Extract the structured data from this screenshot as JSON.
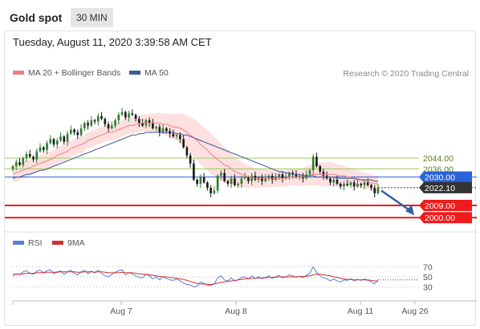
{
  "header": {
    "title": "Gold spot",
    "timeframe": "30 MIN"
  },
  "timestamp": "Tuesday, August 11, 2020 3:39:58 AM CET",
  "credit": "Research © 2020 Trading Central",
  "colors": {
    "ma20": "#f08080",
    "ma50": "#3d5a99",
    "bollinger": "#fcd6d4",
    "candle_up": "#2f7d32",
    "candle_down": "#1a1a1a",
    "resistance": "#9ccc65",
    "pivot": "#2962d6",
    "support": "#ee1c1c",
    "last_price": "#333333",
    "rsi": "#5b7fd8",
    "rsi_ma": "#d32f2f",
    "arrow": "#2f5fa8"
  },
  "chart_data": [
    {
      "type": "candlestick",
      "title": "Gold spot",
      "timeframe": "30 MIN",
      "legend": [
        "MA 20 + Bollinger Bands",
        "MA 50"
      ],
      "legend_position": "top-left",
      "ylim": [
        1993,
        2095
      ],
      "x_ticks": [
        "Aug 7",
        "Aug 8",
        "Aug 11",
        "Aug 26"
      ],
      "levels": [
        {
          "value": 2044.0,
          "label": "2044.00",
          "kind": "resistance"
        },
        {
          "value": 2036.0,
          "label": "2036.00",
          "kind": "resistance"
        },
        {
          "value": 2030.0,
          "label": "2030.00",
          "kind": "pivot"
        },
        {
          "value": 2022.1,
          "label": "2022.10",
          "kind": "last"
        },
        {
          "value": 2009.0,
          "label": "2009.00",
          "kind": "support"
        },
        {
          "value": 2000.0,
          "label": "2000.00",
          "kind": "support"
        }
      ],
      "projection": {
        "from": 2020,
        "to": 2000,
        "direction": "down"
      },
      "series": [
        {
          "name": "Price",
          "close": [
            2038,
            2041,
            2039,
            2044,
            2047,
            2045,
            2043,
            2049,
            2052,
            2050,
            2055,
            2058,
            2054,
            2057,
            2060,
            2056,
            2062,
            2065,
            2063,
            2061,
            2066,
            2070,
            2068,
            2072,
            2071,
            2075,
            2073,
            2069,
            2066,
            2068,
            2072,
            2076,
            2078,
            2074,
            2077,
            2076,
            2073,
            2070,
            2068,
            2072,
            2070,
            2066,
            2067,
            2063,
            2066,
            2064,
            2062,
            2060,
            2061,
            2058,
            2052,
            2046,
            2040,
            2028,
            2025,
            2030,
            2026,
            2022,
            2018,
            2020,
            2031,
            2033,
            2027,
            2025,
            2029,
            2024,
            2025,
            2029,
            2030,
            2027,
            2031,
            2028,
            2030,
            2027,
            2029,
            2031,
            2028,
            2030,
            2032,
            2029,
            2030,
            2033,
            2032,
            2030,
            2031,
            2029,
            2032,
            2035,
            2045,
            2038,
            2034,
            2031,
            2029,
            2026,
            2028,
            2025,
            2023,
            2025,
            2024,
            2026,
            2023,
            2025,
            2024,
            2026,
            2024,
            2022,
            2018,
            2022
          ]
        },
        {
          "name": "MA 20",
          "values": [
            2032,
            2033,
            2034,
            2035,
            2036,
            2037,
            2038,
            2039,
            2040,
            2041,
            2042,
            2043,
            2044,
            2046,
            2047,
            2048,
            2049,
            2051,
            2052,
            2053,
            2054,
            2055,
            2057,
            2058,
            2059,
            2060,
            2061,
            2062,
            2063,
            2063,
            2064,
            2065,
            2066,
            2067,
            2068,
            2068,
            2069,
            2069,
            2070,
            2070,
            2070,
            2070,
            2070,
            2070,
            2069,
            2069,
            2068,
            2067,
            2067,
            2066,
            2065,
            2063,
            2061,
            2059,
            2057,
            2054,
            2052,
            2050,
            2047,
            2045,
            2043,
            2041,
            2039,
            2038,
            2036,
            2034,
            2033,
            2032,
            2031,
            2030,
            2030,
            2029,
            2029,
            2029,
            2029,
            2029,
            2029,
            2029,
            2029,
            2029,
            2029,
            2030,
            2030,
            2030,
            2030,
            2030,
            2031,
            2031,
            2032,
            2032,
            2032,
            2032,
            2032,
            2032,
            2032,
            2031,
            2031,
            2031,
            2030,
            2030,
            2029,
            2029,
            2028,
            2027,
            2027,
            2026,
            2025,
            2025
          ]
        },
        {
          "name": "MA 50",
          "values": [
            2029,
            2030,
            2030,
            2031,
            2032,
            2032,
            2033,
            2034,
            2035,
            2035,
            2036,
            2037,
            2038,
            2039,
            2040,
            2041,
            2042,
            2043,
            2044,
            2045,
            2046,
            2047,
            2048,
            2049,
            2050,
            2051,
            2052,
            2053,
            2054,
            2055,
            2056,
            2057,
            2058,
            2059,
            2060,
            2061,
            2061,
            2062,
            2062,
            2063,
            2063,
            2063,
            2063,
            2063,
            2063,
            2063,
            2063,
            2063,
            2062,
            2062,
            2061,
            2061,
            2060,
            2059,
            2058,
            2057,
            2056,
            2055,
            2054,
            2053,
            2052,
            2051,
            2050,
            2049,
            2048,
            2047,
            2046,
            2045,
            2044,
            2043,
            2042,
            2041,
            2040,
            2039,
            2038,
            2037,
            2036,
            2035,
            2034,
            2034,
            2033,
            2033,
            2032,
            2032,
            2032,
            2031,
            2031,
            2031,
            2031,
            2030,
            2030,
            2030,
            2030,
            2030,
            2030,
            2029,
            2029,
            2029,
            2029,
            2029,
            2029,
            2028,
            2028,
            2028,
            2028,
            2028,
            2027,
            2027
          ]
        }
      ]
    },
    {
      "type": "line",
      "legend": [
        "RSI",
        "9MA"
      ],
      "legend_position": "top-left",
      "ylim": [
        20,
        80
      ],
      "y_ticks": [
        "70",
        "50",
        "30"
      ],
      "series": [
        {
          "name": "RSI",
          "values": [
            52,
            56,
            54,
            60,
            62,
            57,
            55,
            61,
            63,
            58,
            62,
            64,
            56,
            60,
            62,
            55,
            60,
            63,
            57,
            54,
            60,
            63,
            56,
            61,
            58,
            63,
            57,
            52,
            50,
            55,
            59,
            62,
            64,
            54,
            58,
            56,
            52,
            49,
            48,
            55,
            52,
            46,
            50,
            44,
            50,
            47,
            44,
            43,
            46,
            42,
            38,
            35,
            34,
            30,
            32,
            40,
            37,
            34,
            33,
            36,
            48,
            52,
            44,
            42,
            48,
            42,
            44,
            49,
            50,
            46,
            52,
            47,
            50,
            46,
            49,
            52,
            47,
            50,
            53,
            48,
            50,
            54,
            52,
            49,
            51,
            48,
            53,
            57,
            70,
            58,
            52,
            48,
            46,
            42,
            46,
            42,
            40,
            44,
            43,
            46,
            42,
            45,
            43,
            46,
            43,
            40,
            36,
            44
          ]
        },
        {
          "name": "9MA",
          "values": [
            55,
            55,
            55,
            56,
            57,
            57,
            57,
            58,
            58,
            58,
            59,
            59,
            59,
            59,
            60,
            60,
            60,
            60,
            60,
            59,
            59,
            60,
            60,
            60,
            59,
            60,
            60,
            59,
            58,
            58,
            58,
            58,
            59,
            58,
            58,
            58,
            57,
            56,
            55,
            55,
            54,
            53,
            52,
            51,
            50,
            50,
            49,
            48,
            47,
            46,
            45,
            43,
            41,
            39,
            37,
            36,
            36,
            35,
            35,
            36,
            38,
            39,
            40,
            41,
            42,
            43,
            44,
            45,
            46,
            46,
            47,
            47,
            48,
            48,
            48,
            49,
            49,
            49,
            50,
            50,
            50,
            50,
            50,
            50,
            51,
            51,
            51,
            52,
            54,
            55,
            55,
            54,
            53,
            52,
            50,
            49,
            47,
            46,
            45,
            45,
            44,
            44,
            44,
            44,
            44,
            43,
            42,
            42
          ]
        }
      ]
    }
  ]
}
